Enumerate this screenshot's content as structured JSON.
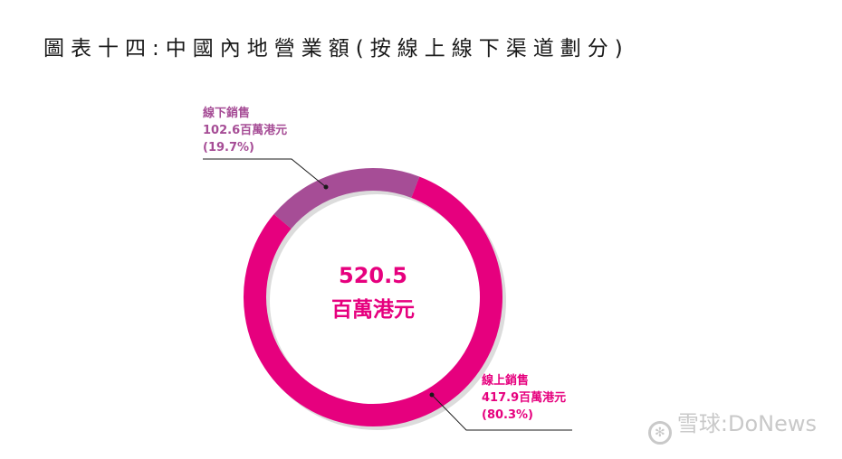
{
  "title": "圖表十四:中國內地營業額(按線上線下渠道劃分)",
  "colors": {
    "online": "#e6007e",
    "offline": "#a64d96",
    "track": "#dcdcdc",
    "leader": "#1a1a1a"
  },
  "chart_data": {
    "type": "pie",
    "title": "圖表十四:中國內地營業額(按線上線下渠道劃分)",
    "total": {
      "value": "520.5",
      "unit": "百萬港元"
    },
    "slices": [
      {
        "name": "線上銷售",
        "value": 417.9,
        "value_text": "417.9百萬港元",
        "percent": 80.3,
        "percent_text": "(80.3%)"
      },
      {
        "name": "線下銷售",
        "value": 102.6,
        "value_text": "102.6百萬港元",
        "percent": 19.7,
        "percent_text": "(19.7%)"
      }
    ]
  },
  "watermark": {
    "icon": "snowball-icon",
    "text": "雪球:DoNews"
  }
}
